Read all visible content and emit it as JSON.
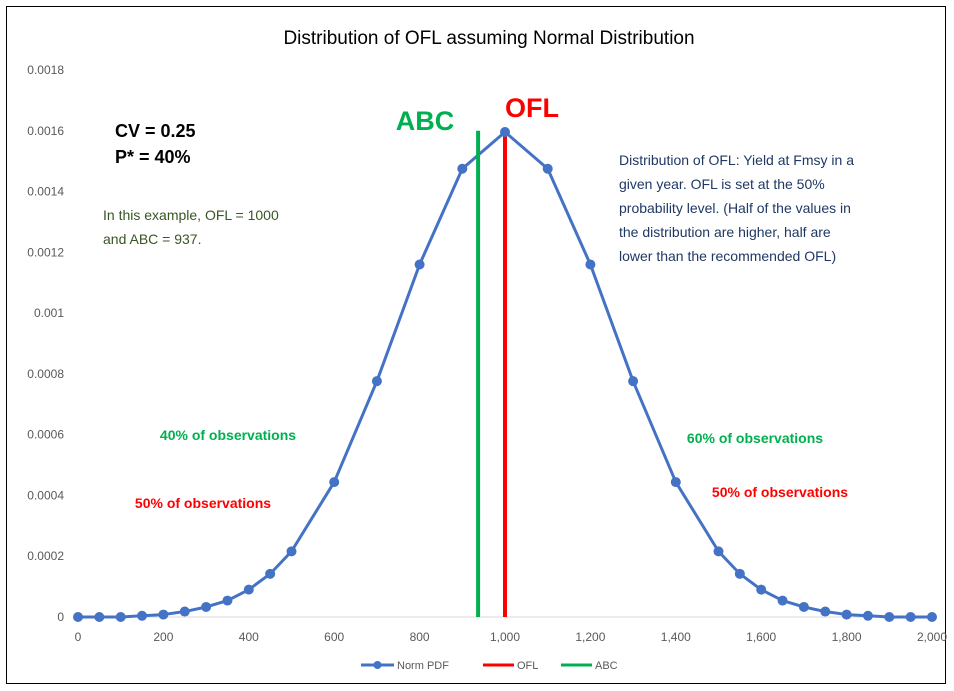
{
  "chart_data": {
    "type": "line",
    "title": "Distribution of OFL assuming Normal Distribution",
    "xlabel": "",
    "ylabel": "",
    "xlim": [
      0,
      2000
    ],
    "ylim": [
      0,
      0.0018
    ],
    "x_ticks": [
      0,
      200,
      400,
      600,
      800,
      1000,
      1200,
      1400,
      1600,
      1800,
      2000
    ],
    "x_tick_labels": [
      "0",
      "200",
      "400",
      "600",
      "800",
      "1,000",
      "1,200",
      "1,400",
      "1,600",
      "1,800",
      "2,000"
    ],
    "y_ticks": [
      0,
      0.0002,
      0.0004,
      0.0006,
      0.0008,
      0.001,
      0.0012,
      0.0014,
      0.0016,
      0.0018
    ],
    "y_tick_labels": [
      "0",
      "0.0002",
      "0.0004",
      "0.0006",
      "0.0008",
      "0.001",
      "0.0012",
      "0.0014",
      "0.0016",
      "0.0018"
    ],
    "grid": false,
    "legend_position": "bottom",
    "series": [
      {
        "name": "Norm PDF",
        "color": "#4472C4",
        "marker": "circle",
        "x": [
          0,
          50,
          100,
          150,
          200,
          250,
          300,
          350,
          400,
          450,
          500,
          600,
          700,
          800,
          900,
          1000,
          1100,
          1200,
          1300,
          1400,
          1500,
          1550,
          1600,
          1650,
          1700,
          1750,
          1800,
          1850,
          1900,
          1950,
          2000
        ],
        "y": [
          0.0,
          0.0,
          0.0,
          4e-06,
          8e-06,
          1.8e-05,
          3.3e-05,
          5.4e-05,
          9e-05,
          0.000142,
          0.000216,
          0.000444,
          0.000776,
          0.00116,
          0.001475,
          0.001596,
          0.001475,
          0.00116,
          0.000776,
          0.000444,
          0.000216,
          0.000142,
          9e-05,
          5.4e-05,
          3.3e-05,
          1.8e-05,
          8e-06,
          4e-06,
          0.0,
          0.0,
          0.0
        ]
      },
      {
        "name": "OFL",
        "color": "#FF0000",
        "x": [
          1000,
          1000
        ],
        "y": [
          0,
          0.0016
        ]
      },
      {
        "name": "ABC",
        "color": "#00B050",
        "x": [
          937,
          937
        ],
        "y": [
          0,
          0.0016
        ]
      }
    ],
    "annotations": {
      "abc_label": "ABC",
      "ofl_label": "OFL",
      "cv": "CV = 0.25",
      "pstar": "P* = 40%",
      "example_line1": "In this example, OFL = 1000",
      "example_line2": "and ABC = 937.",
      "desc_line1": "Distribution of  OFL: Yield at Fmsy in a",
      "desc_line2": "given year. OFL is set at the 50%",
      "desc_line3": "probability level. (Half of the values in",
      "desc_line4": "the distribution are higher, half are",
      "desc_line5": "lower than the recommended OFL)",
      "left_green": "40% of observations",
      "left_red": "50% of observations",
      "right_green": "60% of observations",
      "right_red": "50% of observations"
    },
    "colors": {
      "green_text": "#00B050",
      "red_text": "#FF0000",
      "example_text": "#375623",
      "desc_text": "#1F3864",
      "black": "#000000"
    }
  }
}
